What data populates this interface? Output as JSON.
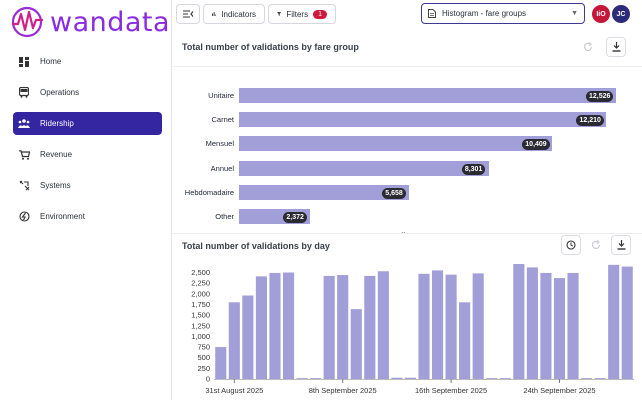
{
  "brand": {
    "name": "wandata",
    "color": "#8a2be2"
  },
  "sidebar": {
    "items": [
      {
        "label": "Home",
        "icon": "dashboard-icon",
        "active": false
      },
      {
        "label": "Operations",
        "icon": "bus-icon",
        "active": false
      },
      {
        "label": "Ridership",
        "icon": "people-icon",
        "active": true
      },
      {
        "label": "Revenue",
        "icon": "cart-icon",
        "active": false
      },
      {
        "label": "Systems",
        "icon": "systems-icon",
        "active": false
      },
      {
        "label": "Environment",
        "icon": "leaf-icon",
        "active": false
      }
    ]
  },
  "topbar": {
    "indicators_label": "Indicators",
    "filters_label": "Filters",
    "filters_count": "1",
    "chart_select": "Histogram - fare groups",
    "avatar_1": "IiO",
    "avatar_2": "JC"
  },
  "colors": {
    "bar": "#a29ed8",
    "accent": "#3326a0",
    "badge": "#d0183c"
  },
  "chart_data": [
    {
      "type": "bar",
      "orientation": "horizontal",
      "title": "Total number of validations by fare group",
      "categories": [
        "Unitaire",
        "Carnet",
        "Mensuel",
        "Annuel",
        "Hebdomadaire",
        "Other"
      ],
      "values": [
        12526,
        12210,
        10409,
        8301,
        5658,
        2372
      ],
      "value_labels": [
        "12,526",
        "12,210",
        "10,409",
        "8,301",
        "5,658",
        "2,372"
      ]
    },
    {
      "type": "bar",
      "title": "Total number of validations by day",
      "ylim": [
        0,
        2700
      ],
      "yticks": [
        0,
        250,
        500,
        750,
        1000,
        1250,
        1500,
        1750,
        2000,
        2250,
        2500
      ],
      "ytick_labels": [
        "0",
        "250",
        "500",
        "750",
        "1,000",
        "1,250",
        "1,500",
        "1,750",
        "2,000",
        "2,250",
        "2,500"
      ],
      "xtick_labels": [
        "31st August 2025",
        "8th September 2025",
        "16th September 2025",
        "24th September 2025"
      ],
      "xtick_index": [
        1,
        9,
        17,
        25
      ],
      "values": [
        750,
        1800,
        1960,
        2410,
        2490,
        2500,
        20,
        20,
        2420,
        2440,
        1640,
        2420,
        2530,
        30,
        30,
        2470,
        2550,
        2450,
        1800,
        2480,
        20,
        20,
        2700,
        2620,
        2490,
        2370,
        2490,
        20,
        20,
        2680,
        2640
      ]
    }
  ]
}
